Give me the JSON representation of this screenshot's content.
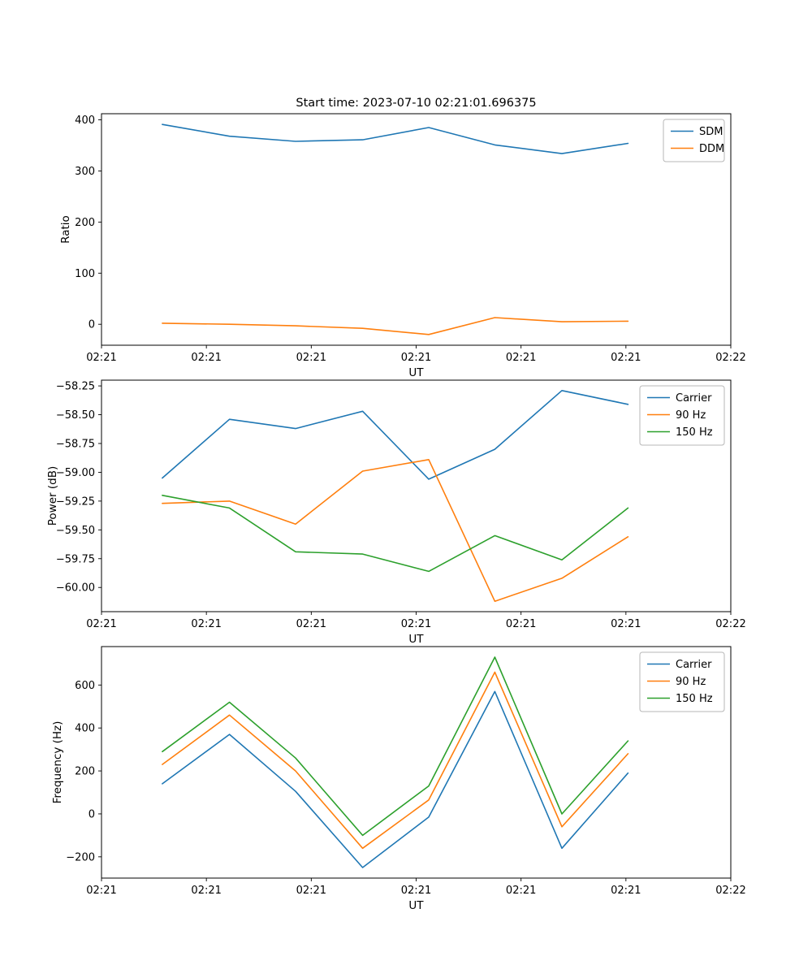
{
  "figure": {
    "title": "Start time: 2023-07-10 02:21:01.696375",
    "background_color": "#ffffff",
    "axes_edge_color": "#000000",
    "legend_border_color": "#b7b7b7"
  },
  "chart_data": [
    {
      "type": "line",
      "name": "ratio",
      "title": "Start time: 2023-07-10 02:21:01.696375",
      "xlabel": "UT",
      "ylabel": "Ratio",
      "grid": false,
      "legend_position": "upper right",
      "xlim": [
        0,
        60
      ],
      "ylim": [
        -41,
        412
      ],
      "x": [
        5.8,
        12.2,
        18.5,
        24.9,
        31.2,
        37.5,
        43.9,
        50.2
      ],
      "x_ticks": [
        0,
        10,
        20,
        30,
        40,
        50,
        60
      ],
      "x_tick_labels": [
        "02:21",
        "02:21",
        "02:21",
        "02:21",
        "02:21",
        "02:21",
        "02:22"
      ],
      "y_ticks": [
        0,
        100,
        200,
        300,
        400
      ],
      "y_tick_labels": [
        "0",
        "100",
        "200",
        "300",
        "400"
      ],
      "series": [
        {
          "name": "SDM",
          "color": "#1f77b4",
          "values": [
            391,
            368,
            358,
            361,
            385,
            351,
            334,
            354
          ]
        },
        {
          "name": "DDM",
          "color": "#ff7f0e",
          "values": [
            2,
            0,
            -3,
            -8,
            -20,
            13,
            5,
            6
          ]
        }
      ]
    },
    {
      "type": "line",
      "name": "power",
      "title": "",
      "xlabel": "UT",
      "ylabel": "Power (dB)",
      "grid": false,
      "legend_position": "upper right",
      "xlim": [
        0,
        60
      ],
      "ylim": [
        -60.21,
        -58.2
      ],
      "x": [
        5.8,
        12.2,
        18.5,
        24.9,
        31.2,
        37.5,
        43.9,
        50.2
      ],
      "x_ticks": [
        0,
        10,
        20,
        30,
        40,
        50,
        60
      ],
      "x_tick_labels": [
        "02:21",
        "02:21",
        "02:21",
        "02:21",
        "02:21",
        "02:21",
        "02:22"
      ],
      "y_ticks": [
        -60.0,
        -59.75,
        -59.5,
        -59.25,
        -59.0,
        -58.75,
        -58.5,
        -58.25
      ],
      "y_tick_labels": [
        "−60.00",
        "−59.75",
        "−59.50",
        "−59.25",
        "−59.00",
        "−58.75",
        "−58.50",
        "−58.25"
      ],
      "series": [
        {
          "name": "Carrier",
          "color": "#1f77b4",
          "values": [
            -59.05,
            -58.54,
            -58.62,
            -58.47,
            -59.06,
            -58.8,
            -58.29,
            -58.41
          ]
        },
        {
          "name": "90 Hz",
          "color": "#ff7f0e",
          "values": [
            -59.27,
            -59.25,
            -59.45,
            -58.99,
            -58.89,
            -60.12,
            -59.92,
            -59.56
          ]
        },
        {
          "name": "150 Hz",
          "color": "#2ca02c",
          "values": [
            -59.2,
            -59.31,
            -59.69,
            -59.71,
            -59.86,
            -59.55,
            -59.76,
            -59.31
          ]
        }
      ]
    },
    {
      "type": "line",
      "name": "frequency",
      "title": "",
      "xlabel": "UT",
      "ylabel": "Frequency (Hz)",
      "grid": false,
      "legend_position": "upper right",
      "xlim": [
        0,
        60
      ],
      "ylim": [
        -299,
        779
      ],
      "x": [
        5.8,
        12.2,
        18.5,
        24.9,
        31.2,
        37.5,
        43.9,
        50.2
      ],
      "x_ticks": [
        0,
        10,
        20,
        30,
        40,
        50,
        60
      ],
      "x_tick_labels": [
        "02:21",
        "02:21",
        "02:21",
        "02:21",
        "02:21",
        "02:21",
        "02:22"
      ],
      "y_ticks": [
        -200,
        0,
        200,
        400,
        600
      ],
      "y_tick_labels": [
        "−200",
        "0",
        "200",
        "400",
        "600"
      ],
      "series": [
        {
          "name": "Carrier",
          "color": "#1f77b4",
          "values": [
            140,
            370,
            105,
            -250,
            -15,
            570,
            -160,
            190
          ]
        },
        {
          "name": "90 Hz",
          "color": "#ff7f0e",
          "values": [
            230,
            460,
            200,
            -160,
            65,
            660,
            -60,
            280
          ]
        },
        {
          "name": "150 Hz",
          "color": "#2ca02c",
          "values": [
            290,
            520,
            260,
            -100,
            130,
            730,
            0,
            340
          ]
        }
      ]
    }
  ]
}
